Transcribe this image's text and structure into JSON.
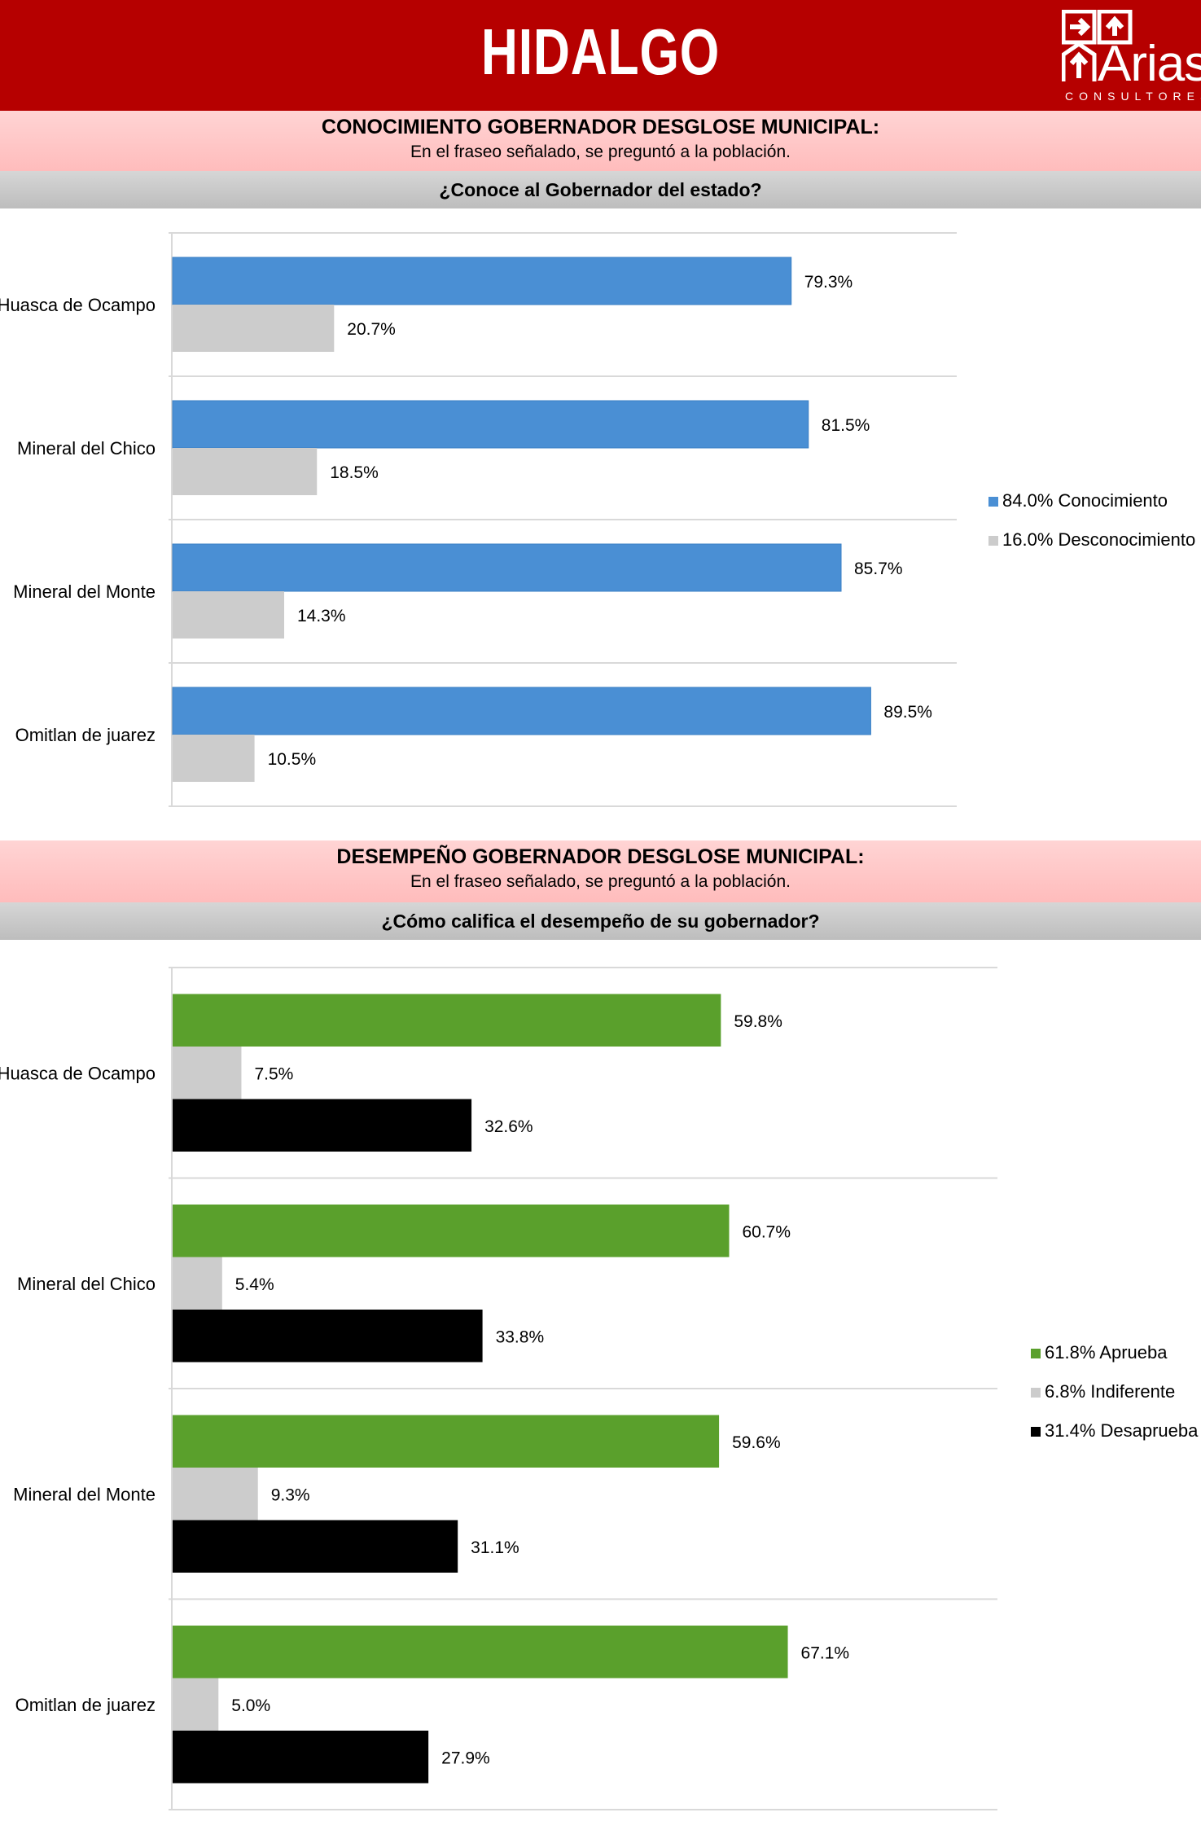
{
  "header": {
    "title": "HIDALGO",
    "logo_name": "Arias",
    "logo_sub": "CONSULTORES"
  },
  "section1": {
    "title": "CONOCIMIENTO GOBERNADOR DESGLOSE MUNICIPAL:",
    "subtitle": "En el fraseo señalado, se preguntó a la población.",
    "question": "¿Conoce al Gobernador del estado?"
  },
  "section2": {
    "title": "DESEMPEÑO GOBERNADOR  DESGLOSE MUNICIPAL:",
    "subtitle": "En el fraseo señalado, se preguntó a la población.",
    "question": "¿Cómo califica el desempeño de su gobernador?"
  },
  "colors": {
    "blue": "#4a8fd4",
    "gray": "#cccccc",
    "green": "#5aa02c",
    "black": "#000000",
    "red": "#b60000"
  },
  "chart_data": [
    {
      "type": "bar",
      "orientation": "horizontal",
      "categories": [
        "Huasca de Ocampo",
        "Mineral del Chico",
        "Mineral del Monte",
        "Omitlan de juarez"
      ],
      "series": [
        {
          "name": "Conocimiento",
          "legend": "84.0% Conocimiento",
          "color": "#4a8fd4",
          "values": [
            79.3,
            81.5,
            85.7,
            89.5
          ],
          "labels": [
            "79.3%",
            "81.5%",
            "85.7%",
            "89.5%"
          ]
        },
        {
          "name": "Desconocimiento",
          "legend": "16.0% Desconocimiento",
          "color": "#cccccc",
          "values": [
            20.7,
            18.5,
            14.3,
            10.5
          ],
          "labels": [
            "20.7%",
            "18.5%",
            "14.3%",
            "10.5%"
          ]
        }
      ],
      "xlim": [
        0,
        100
      ],
      "legend_position": "right"
    },
    {
      "type": "bar",
      "orientation": "horizontal",
      "categories": [
        "Huasca de Ocampo",
        "Mineral del Chico",
        "Mineral del Monte",
        "Omitlan de juarez"
      ],
      "series": [
        {
          "name": "Aprueba",
          "legend": "61.8% Aprueba",
          "color": "#5aa02c",
          "values": [
            59.8,
            60.7,
            59.6,
            67.1
          ],
          "labels": [
            "59.8%",
            "60.7%",
            "59.6%",
            "67.1%"
          ]
        },
        {
          "name": "Indiferente",
          "legend": "6.8% Indiferente",
          "color": "#cccccc",
          "values": [
            7.5,
            5.4,
            9.3,
            5.0
          ],
          "labels": [
            "7.5%",
            "5.4%",
            "9.3%",
            "5.0%"
          ]
        },
        {
          "name": "Desaprueba",
          "legend": "31.4% Desaprueba",
          "color": "#000000",
          "values": [
            32.6,
            33.8,
            31.1,
            27.9
          ],
          "labels": [
            "32.6%",
            "33.8%",
            "31.1%",
            "27.9%"
          ]
        }
      ],
      "xlim": [
        0,
        100
      ],
      "legend_position": "right"
    }
  ]
}
